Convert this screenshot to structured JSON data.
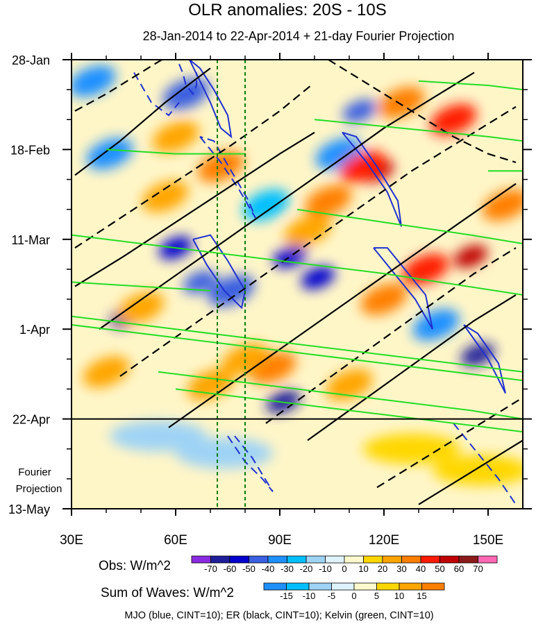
{
  "chart_data": {
    "type": "heatmap",
    "title": "OLR anomalies: 20S - 10S",
    "subtitle": "28-Jan-2014 to 22-Apr-2014 + 21-day Fourier Projection",
    "x_axis": {
      "range": [
        30,
        160
      ],
      "ticks": [
        {
          "value": 30,
          "label": "30E"
        },
        {
          "value": 60,
          "label": "60E"
        },
        {
          "value": 90,
          "label": "90E"
        },
        {
          "value": 120,
          "label": "120E"
        },
        {
          "value": 150,
          "label": "150E"
        }
      ]
    },
    "y_axis": {
      "range_days": [
        0,
        105
      ],
      "direction": "top-to-bottom",
      "ticks": [
        {
          "day": 0,
          "label": "28-Jan"
        },
        {
          "day": 21,
          "label": "18-Feb"
        },
        {
          "day": 42,
          "label": "11-Mar"
        },
        {
          "day": 63,
          "label": "1-Apr"
        },
        {
          "day": 84,
          "label": "22-Apr"
        },
        {
          "day": 105,
          "label": "13-May"
        }
      ],
      "forecast_start_day": 84,
      "forecast_label_line1": "Fourier",
      "forecast_label_line2": "Projection"
    },
    "reference_lines_lon": [
      72,
      80
    ],
    "obs_legend": {
      "label": "Obs: W/m^2",
      "levels": [
        "-70",
        "-60",
        "-50",
        "-40",
        "-30",
        "-20",
        "-10",
        "0",
        "10",
        "20",
        "30",
        "40",
        "50",
        "60",
        "70"
      ],
      "colors": [
        "#8a2be2",
        "#1e1e9a",
        "#0000cd",
        "#3a5fe0",
        "#1e90ff",
        "#00bfff",
        "#9fd3f5",
        "#dff3ff",
        "#fffacd",
        "#ffd700",
        "#ffa500",
        "#ff7f00",
        "#ff1a00",
        "#c00000",
        "#8b1a1a",
        "#ff69b4"
      ]
    },
    "waves_legend": {
      "label": "Sum of Waves: W/m^2",
      "levels": [
        "-15",
        "-10",
        "-5",
        "0",
        "5",
        "10",
        "15"
      ],
      "colors": [
        "#1e90ff",
        "#00bfff",
        "#9fd3f5",
        "#dff3ff",
        "#fffacd",
        "#ffd700",
        "#ffa500",
        "#ff7f00"
      ]
    },
    "caption": "MJO (blue, CINT=10); ER (black, CINT=10); Kelvin (green, CINT=10)",
    "blobs": [
      {
        "lon": 46,
        "day": 60,
        "value": -70
      },
      {
        "lon": 60,
        "day": 44,
        "value": -60
      },
      {
        "lon": 67,
        "day": 52,
        "value": -50
      },
      {
        "lon": 76,
        "day": 54,
        "value": -45
      },
      {
        "lon": 91,
        "day": 80,
        "value": -70
      },
      {
        "lon": 93,
        "day": 46,
        "value": -55
      },
      {
        "lon": 101,
        "day": 51,
        "value": -60
      },
      {
        "lon": 107,
        "day": 22,
        "value": -40
      },
      {
        "lon": 113,
        "day": 12,
        "value": -50
      },
      {
        "lon": 147,
        "day": 69,
        "value": -70
      },
      {
        "lon": 135,
        "day": 62,
        "value": -40
      },
      {
        "lon": 63,
        "day": 8,
        "value": -45
      },
      {
        "lon": 36,
        "day": 5,
        "value": -35
      },
      {
        "lon": 41,
        "day": 22,
        "value": -40
      },
      {
        "lon": 86,
        "day": 34,
        "value": -30
      },
      {
        "lon": 118,
        "day": 26,
        "value": 50
      },
      {
        "lon": 114,
        "day": 25,
        "value": 45
      },
      {
        "lon": 145,
        "day": 46,
        "value": 50
      },
      {
        "lon": 132,
        "day": 49,
        "value": 40
      },
      {
        "lon": 140,
        "day": 14,
        "value": 40
      },
      {
        "lon": 104,
        "day": 33,
        "value": 35
      },
      {
        "lon": 73,
        "day": 25,
        "value": 30
      },
      {
        "lon": 57,
        "day": 32,
        "value": 25
      },
      {
        "lon": 88,
        "day": 72,
        "value": 30
      },
      {
        "lon": 80,
        "day": 70,
        "value": 25
      },
      {
        "lon": 50,
        "day": 58,
        "value": 25
      },
      {
        "lon": 125,
        "day": 10,
        "value": 30
      },
      {
        "lon": 98,
        "day": 40,
        "value": 25
      },
      {
        "lon": 155,
        "day": 34,
        "value": 30
      },
      {
        "lon": 120,
        "day": 56,
        "value": 30
      },
      {
        "lon": 60,
        "day": 18,
        "value": 25
      },
      {
        "lon": 40,
        "day": 73,
        "value": 20
      },
      {
        "lon": 70,
        "day": 76,
        "value": 20
      },
      {
        "lon": 110,
        "day": 76,
        "value": 20
      }
    ],
    "forecast_blobs": [
      {
        "lon": 55,
        "day": 88,
        "value": -8
      },
      {
        "lon": 74,
        "day": 92,
        "value": -6
      },
      {
        "lon": 128,
        "day": 91,
        "value": 6
      },
      {
        "lon": 148,
        "day": 96,
        "value": 8
      }
    ],
    "mjo_contours": [
      {
        "type": "neg",
        "path": [
          [
            61,
            1
          ],
          [
            62,
            3
          ],
          [
            63,
            6
          ],
          [
            65,
            8
          ],
          [
            66,
            6
          ],
          [
            66,
            3
          ]
        ]
      },
      {
        "type": "pos",
        "path": [
          [
            64,
            0
          ],
          [
            67,
            5
          ],
          [
            70,
            10
          ],
          [
            73,
            16
          ],
          [
            76,
            18
          ],
          [
            75,
            13
          ],
          [
            71,
            7
          ],
          [
            67,
            2
          ],
          [
            64,
            0
          ]
        ]
      },
      {
        "type": "neg",
        "path": [
          [
            48,
            3
          ],
          [
            53,
            10
          ],
          [
            58,
            13
          ],
          [
            61,
            10
          ]
        ]
      },
      {
        "type": "neg",
        "path": [
          [
            67,
            18
          ],
          [
            73,
            24
          ],
          [
            78,
            30
          ],
          [
            83,
            37
          ],
          [
            81,
            33
          ],
          [
            76,
            26
          ],
          [
            71,
            19
          ],
          [
            67,
            18
          ]
        ]
      },
      {
        "type": "pos",
        "path": [
          [
            65,
            42
          ],
          [
            69,
            48
          ],
          [
            74,
            54
          ],
          [
            79,
            58
          ],
          [
            80,
            54
          ],
          [
            75,
            47
          ],
          [
            70,
            41
          ],
          [
            65,
            42
          ]
        ]
      },
      {
        "type": "pos",
        "path": [
          [
            108,
            17
          ],
          [
            115,
            24
          ],
          [
            121,
            31
          ],
          [
            125,
            39
          ],
          [
            124,
            33
          ],
          [
            118,
            25
          ],
          [
            112,
            18
          ],
          [
            108,
            17
          ]
        ]
      },
      {
        "type": "pos",
        "path": [
          [
            117,
            44
          ],
          [
            123,
            50
          ],
          [
            129,
            56
          ],
          [
            134,
            63
          ],
          [
            132,
            55
          ],
          [
            126,
            49
          ],
          [
            121,
            44
          ],
          [
            117,
            44
          ]
        ]
      },
      {
        "type": "pos",
        "path": [
          [
            143,
            62
          ],
          [
            150,
            70
          ],
          [
            155,
            78
          ],
          [
            153,
            71
          ],
          [
            147,
            64
          ],
          [
            143,
            62
          ]
        ]
      },
      {
        "type": "neg",
        "path": [
          [
            140,
            85
          ],
          [
            146,
            91
          ],
          [
            153,
            98
          ],
          [
            158,
            104
          ]
        ]
      },
      {
        "type": "neg",
        "path": [
          [
            75,
            88
          ],
          [
            80,
            94
          ],
          [
            85,
            98
          ],
          [
            88,
            101
          ],
          [
            82,
            93
          ],
          [
            77,
            88
          ]
        ]
      }
    ],
    "er_contours": [
      {
        "type": "pos",
        "path": [
          [
            31,
            27
          ],
          [
            44,
            19
          ],
          [
            57,
            10
          ],
          [
            70,
            2
          ]
        ]
      },
      {
        "type": "neg",
        "path": [
          [
            31,
            12
          ],
          [
            40,
            8
          ],
          [
            50,
            3
          ],
          [
            56,
            0
          ]
        ]
      },
      {
        "type": "neg",
        "path": [
          [
            31,
            44
          ],
          [
            46,
            36
          ],
          [
            61,
            28
          ],
          [
            76,
            20
          ],
          [
            90,
            12
          ],
          [
            99,
            6
          ]
        ]
      },
      {
        "type": "pos",
        "path": [
          [
            31,
            53
          ],
          [
            45,
            46
          ],
          [
            60,
            38
          ],
          [
            75,
            30
          ],
          [
            90,
            22
          ],
          [
            100,
            17
          ]
        ]
      },
      {
        "type": "pos",
        "path": [
          [
            38,
            63
          ],
          [
            52,
            55
          ],
          [
            66,
            47
          ],
          [
            80,
            39
          ],
          [
            94,
            31
          ],
          [
            108,
            23
          ],
          [
            120,
            16
          ],
          [
            132,
            10
          ],
          [
            146,
            3
          ]
        ]
      },
      {
        "type": "neg",
        "path": [
          [
            44,
            74
          ],
          [
            58,
            66
          ],
          [
            72,
            58
          ],
          [
            86,
            50
          ],
          [
            100,
            42
          ],
          [
            114,
            34
          ],
          [
            128,
            26
          ],
          [
            142,
            19
          ],
          [
            158,
            11
          ]
        ]
      },
      {
        "type": "pos",
        "path": [
          [
            58,
            86
          ],
          [
            72,
            78
          ],
          [
            86,
            70
          ],
          [
            100,
            62
          ],
          [
            114,
            54
          ],
          [
            128,
            46
          ],
          [
            142,
            38
          ],
          [
            158,
            29
          ]
        ]
      },
      {
        "type": "neg",
        "path": [
          [
            86,
            85
          ],
          [
            98,
            78
          ],
          [
            110,
            71
          ],
          [
            122,
            64
          ],
          [
            134,
            57
          ],
          [
            146,
            50
          ],
          [
            158,
            44
          ]
        ]
      },
      {
        "type": "pos",
        "path": [
          [
            98,
            89
          ],
          [
            110,
            82
          ],
          [
            122,
            75
          ],
          [
            134,
            68
          ],
          [
            146,
            61
          ],
          [
            158,
            55
          ]
        ]
      },
      {
        "type": "neg",
        "path": [
          [
            118,
            100
          ],
          [
            130,
            94
          ],
          [
            142,
            88
          ],
          [
            154,
            82
          ],
          [
            160,
            79
          ]
        ]
      },
      {
        "type": "pos",
        "path": [
          [
            130,
            104
          ],
          [
            142,
            98
          ],
          [
            154,
            92
          ],
          [
            160,
            89
          ]
        ]
      },
      {
        "type": "neg",
        "path": [
          [
            104,
            0
          ],
          [
            116,
            6
          ],
          [
            128,
            12
          ],
          [
            140,
            18
          ],
          [
            150,
            22
          ],
          [
            158,
            24
          ]
        ]
      }
    ],
    "kelvin_contours": [
      {
        "path": [
          [
            30,
            41
          ],
          [
            60,
            44
          ],
          [
            90,
            47
          ],
          [
            120,
            50
          ],
          [
            160,
            55
          ]
        ]
      },
      {
        "path": [
          [
            30,
            60
          ],
          [
            60,
            63
          ],
          [
            90,
            66
          ],
          [
            120,
            69
          ],
          [
            160,
            73
          ]
        ]
      },
      {
        "path": [
          [
            30,
            62
          ],
          [
            60,
            65
          ],
          [
            90,
            68
          ],
          [
            120,
            71
          ],
          [
            160,
            75
          ]
        ]
      },
      {
        "path": [
          [
            55,
            73
          ],
          [
            85,
            76
          ],
          [
            115,
            79
          ],
          [
            145,
            82
          ],
          [
            160,
            84
          ]
        ]
      },
      {
        "path": [
          [
            60,
            77
          ],
          [
            90,
            80
          ],
          [
            120,
            83
          ],
          [
            150,
            86
          ],
          [
            160,
            87
          ]
        ]
      },
      {
        "path": [
          [
            95,
            35
          ],
          [
            120,
            38
          ],
          [
            145,
            41
          ],
          [
            160,
            43
          ]
        ]
      },
      {
        "path": [
          [
            100,
            14
          ],
          [
            125,
            16
          ],
          [
            150,
            18
          ],
          [
            160,
            19
          ]
        ]
      },
      {
        "path": [
          [
            30,
            52
          ],
          [
            50,
            53
          ],
          [
            70,
            54
          ]
        ]
      },
      {
        "path": [
          [
            130,
            5
          ],
          [
            150,
            6
          ],
          [
            160,
            7
          ]
        ]
      },
      {
        "path": [
          [
            150,
            26
          ],
          [
            160,
            26
          ]
        ]
      },
      {
        "path": [
          [
            40,
            21
          ],
          [
            60,
            22
          ],
          [
            80,
            22
          ]
        ]
      }
    ]
  }
}
